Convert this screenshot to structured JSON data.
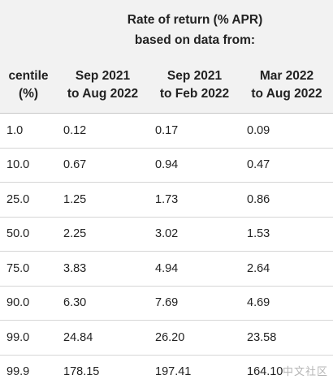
{
  "table": {
    "group_header": {
      "line1": "Rate of return (% APR)",
      "line2": "based on data from:"
    },
    "columns": [
      {
        "line1": "centile",
        "line2": "(%)"
      },
      {
        "line1": "Sep 2021",
        "line2": "to Aug 2022"
      },
      {
        "line1": "Sep 2021",
        "line2": "to Feb 2022"
      },
      {
        "line1": "Mar 2022",
        "line2": "to Aug 2022"
      }
    ],
    "rows": [
      [
        "1.0",
        "0.12",
        "0.17",
        "0.09"
      ],
      [
        "10.0",
        "0.67",
        "0.94",
        "0.47"
      ],
      [
        "25.0",
        "1.25",
        "1.73",
        "0.86"
      ],
      [
        "50.0",
        "2.25",
        "3.02",
        "1.53"
      ],
      [
        "75.0",
        "3.83",
        "4.94",
        "2.64"
      ],
      [
        "90.0",
        "6.30",
        "7.69",
        "4.69"
      ],
      [
        "99.0",
        "24.84",
        "26.20",
        "23.58"
      ],
      [
        "99.9",
        "178.15",
        "197.41",
        "164.10"
      ]
    ]
  },
  "watermark": "中文社区",
  "colors": {
    "header_bg": "#f2f2f2",
    "row_border": "#d6d6d6",
    "text": "#222222"
  }
}
